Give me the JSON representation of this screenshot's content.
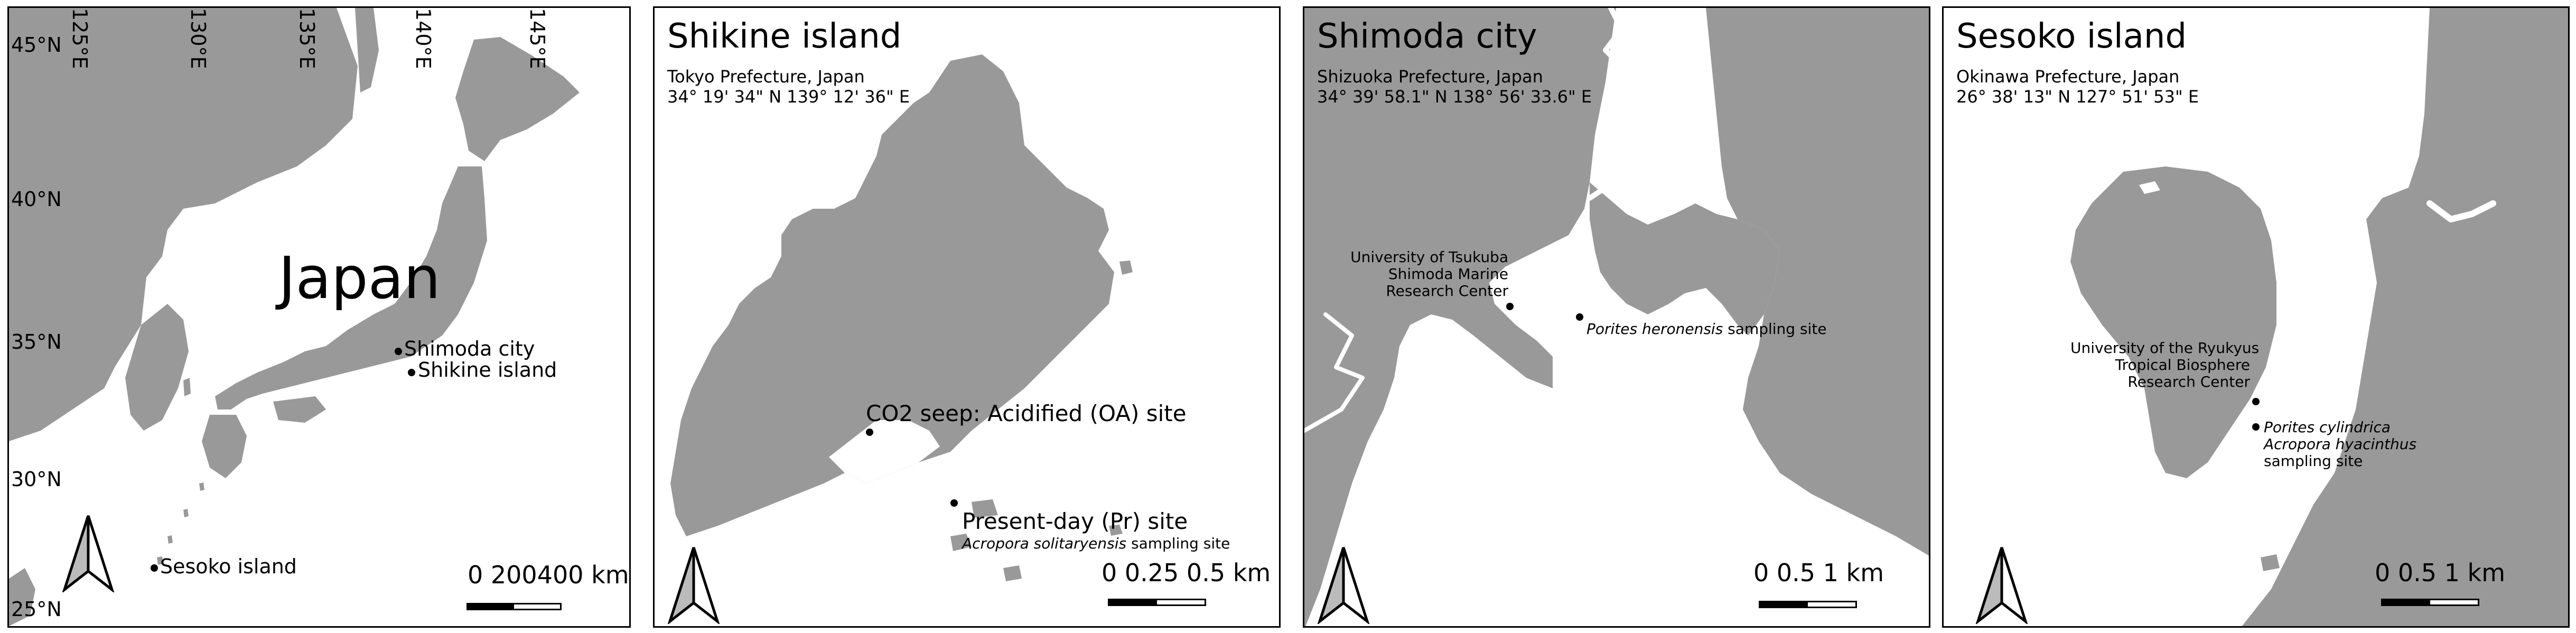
{
  "japan": {
    "country_label": "Japan",
    "lat_labels": [
      "45°N",
      "40°N",
      "35°N",
      "30°N",
      "25°N"
    ],
    "lon_labels": [
      "125°E",
      "130°E",
      "135°E",
      "140°E",
      "145°E"
    ],
    "sites": {
      "shimoda": "Shimoda city",
      "shikine": "Shikine island",
      "sesoko": "Sesoko island"
    },
    "scale": "0  200400 km",
    "colors": {
      "land": "#999999",
      "water": "#ffffff"
    }
  },
  "shikine": {
    "title": "Shikine island",
    "prefecture": "Tokyo Prefecture, Japan",
    "coords": "34° 19' 34\" N 139° 12' 36\" E",
    "oa_site": "CO2 seep: Acidified (OA) site",
    "pr_site": "Present-day (Pr) site",
    "species": "Acropora solitaryensis",
    "species_suffix": " sampling site",
    "scale": "0  0.25 0.5 km"
  },
  "shimoda": {
    "title": "Shimoda city",
    "prefecture": "Shizuoka Prefecture, Japan",
    "coords": "34° 39' 58.1\" N 138° 56' 33.6\" E",
    "center_line1": "University of Tsukuba",
    "center_line2": "Shimoda Marine",
    "center_line3": "Research Center",
    "species": "Porites heronensis",
    "species_suffix": " sampling site",
    "scale": "0   0.5    1 km"
  },
  "sesoko": {
    "title": "Sesoko island",
    "prefecture": "Okinawa Prefecture, Japan",
    "coords": "26° 38' 13\" N 127° 51' 53\" E",
    "center_line1": "University of the Ryukyus",
    "center_line2": "Tropical Biosphere",
    "center_line3": "Research Center",
    "species1": "Porites cylindrica",
    "species2": "Acropora hyacinthus",
    "species_suffix": "sampling site",
    "scale": "0   0.5    1 km"
  }
}
